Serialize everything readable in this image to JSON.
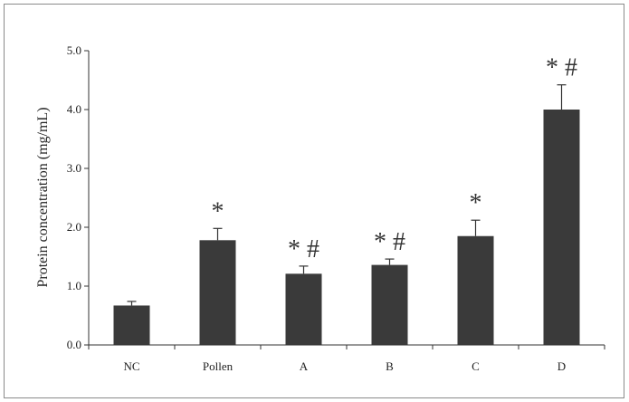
{
  "chart_data": {
    "type": "bar",
    "title": "",
    "xlabel": "",
    "ylabel": "Protein concentration (mg/mL)",
    "ylim": [
      0,
      5
    ],
    "yticks": [
      "0.0",
      "1.0",
      "2.0",
      "3.0",
      "4.0",
      "5.0"
    ],
    "categories": [
      "NC",
      "Pollen",
      "A",
      "B",
      "C",
      "D"
    ],
    "values": [
      0.67,
      1.78,
      1.21,
      1.36,
      1.85,
      4.0
    ],
    "errors": [
      0.07,
      0.2,
      0.13,
      0.1,
      0.27,
      0.42
    ],
    "annotations": [
      "",
      "*",
      "* #",
      "* #",
      "*",
      "* #"
    ],
    "bar_color": "#3a3a3a",
    "grid": false,
    "legend": "none"
  }
}
